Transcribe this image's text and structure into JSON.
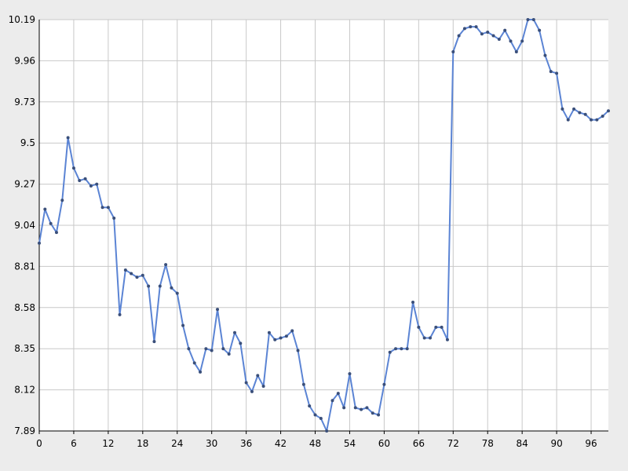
{
  "chart_data": {
    "type": "line",
    "title": "",
    "xlabel": "",
    "ylabel": "",
    "xlim": [
      0,
      99
    ],
    "ylim": [
      7.89,
      10.19
    ],
    "x_ticks": [
      "0",
      "6",
      "12",
      "18",
      "24",
      "30",
      "36",
      "42",
      "48",
      "54",
      "60",
      "66",
      "72",
      "78",
      "84",
      "90",
      "96"
    ],
    "y_ticks": [
      "7.89",
      "8.12",
      "8.35",
      "8.58",
      "8.81",
      "9.04",
      "9.27",
      "9.5",
      "9.73",
      "9.96",
      "10.19"
    ],
    "grid": true,
    "legend": "none",
    "colors": {
      "line": "#5b84d4",
      "marker": "#3a4f7a",
      "grid": "#c8c8c8",
      "plot_background": "#ffffff",
      "page_background": "#ececec"
    },
    "series": [
      {
        "values": [
          8.94,
          9.13,
          9.05,
          9.0,
          9.18,
          9.53,
          9.36,
          9.29,
          9.3,
          9.26,
          9.27,
          9.14,
          9.14,
          9.08,
          8.54,
          8.79,
          8.77,
          8.75,
          8.76,
          8.7,
          8.39,
          8.7,
          8.82,
          8.69,
          8.66,
          8.48,
          8.35,
          8.27,
          8.22,
          8.35,
          8.34,
          8.57,
          8.35,
          8.32,
          8.44,
          8.38,
          8.16,
          8.11,
          8.2,
          8.14,
          8.44,
          8.4,
          8.41,
          8.42,
          8.45,
          8.34,
          8.15,
          8.03,
          7.98,
          7.96,
          7.89,
          8.06,
          8.1,
          8.02,
          8.21,
          8.02,
          8.01,
          8.02,
          7.99,
          7.98,
          8.15,
          8.33,
          8.35,
          8.35,
          8.35,
          8.61,
          8.47,
          8.41,
          8.41,
          8.47,
          8.47,
          8.4,
          10.01,
          10.1,
          10.14,
          10.15,
          10.15,
          10.11,
          10.12,
          10.1,
          10.08,
          10.13,
          10.07,
          10.01,
          10.07,
          10.19,
          10.19,
          10.13,
          9.99,
          9.9,
          9.89,
          9.69,
          9.63,
          9.69,
          9.67,
          9.66,
          9.63,
          9.63,
          9.65,
          9.68
        ]
      }
    ]
  }
}
